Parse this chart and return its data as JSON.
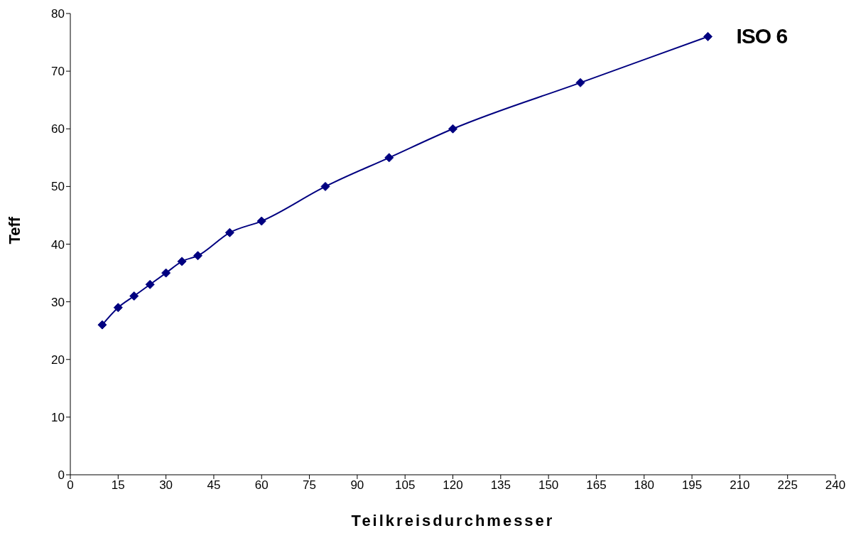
{
  "chart_data": {
    "type": "line",
    "xlabel": "Teilkreisdurchmesser",
    "ylabel": "Teff",
    "x": [
      10,
      15,
      20,
      25,
      30,
      35,
      40,
      50,
      60,
      80,
      100,
      120,
      160,
      200
    ],
    "series": [
      {
        "name": "ISO 6",
        "color": "#000080",
        "values": [
          26,
          29,
          31,
          33,
          35,
          37,
          38,
          42,
          44,
          50,
          55,
          60,
          68,
          76
        ]
      }
    ],
    "xlim": [
      0,
      240
    ],
    "xticks": [
      0,
      15,
      30,
      45,
      60,
      75,
      90,
      105,
      120,
      135,
      150,
      165,
      180,
      195,
      210,
      225,
      240
    ],
    "ylim": [
      0,
      80
    ],
    "yticks": [
      0,
      10,
      20,
      30,
      40,
      50,
      60,
      70,
      80
    ],
    "grid": false,
    "legend": false,
    "marker": "diamond",
    "line_style": "solid"
  }
}
